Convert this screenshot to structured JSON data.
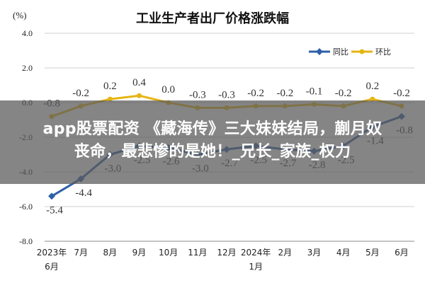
{
  "chart_data": {
    "type": "line",
    "title": "工业生产者出厂价格涨跌幅",
    "unit_label": "(%)",
    "categories": [
      [
        "2023年",
        "6月"
      ],
      [
        "7月"
      ],
      [
        "8月"
      ],
      [
        "9月"
      ],
      [
        "10月"
      ],
      [
        "11月"
      ],
      [
        "12月"
      ],
      [
        "2024年",
        "1月"
      ],
      [
        "2月"
      ],
      [
        "3月"
      ],
      [
        "4月"
      ],
      [
        "5月"
      ],
      [
        "6月"
      ]
    ],
    "ylim": [
      -8.0,
      4.0
    ],
    "yticks": [
      "4.0",
      "2.0",
      "0.0",
      "-2.0",
      "-4.0",
      "-6.0",
      "-8.0"
    ],
    "grid": true,
    "legend_position": "top-right",
    "series": [
      {
        "name": "同比",
        "color": "#2e5fa8",
        "values": [
          -5.4,
          -4.4,
          -3.0,
          -2.5,
          -2.6,
          -3.0,
          -2.7,
          -2.5,
          -2.7,
          -2.8,
          -2.5,
          -1.4,
          -0.8
        ],
        "labels": [
          "-5.4",
          "-4.4",
          "-3.0",
          "-2.5",
          "-2.6",
          "-3.0",
          "-2.7",
          "-2.5",
          "-2.7",
          "-2.8",
          "-2.5",
          "-1.4",
          "-0.8"
        ]
      },
      {
        "name": "环比",
        "color": "#e6b512",
        "values": [
          -0.8,
          -0.2,
          0.2,
          0.4,
          0.0,
          -0.3,
          -0.3,
          -0.2,
          -0.2,
          -0.1,
          -0.2,
          0.2,
          -0.2
        ],
        "labels": [
          "-0.8",
          "-0.2",
          "0.2",
          "0.4",
          "0.0",
          "-0.3",
          "-0.3",
          "-0.2",
          "-0.2",
          "-0.1",
          "-0.2",
          "0.2",
          "-0.2"
        ]
      }
    ]
  },
  "overlay": {
    "line1": "app股票配资 《藏海传》三大妹妹结局，蒯月奴",
    "line2": "丧命，最悲惨的是她！_兄长_家族_权力"
  }
}
